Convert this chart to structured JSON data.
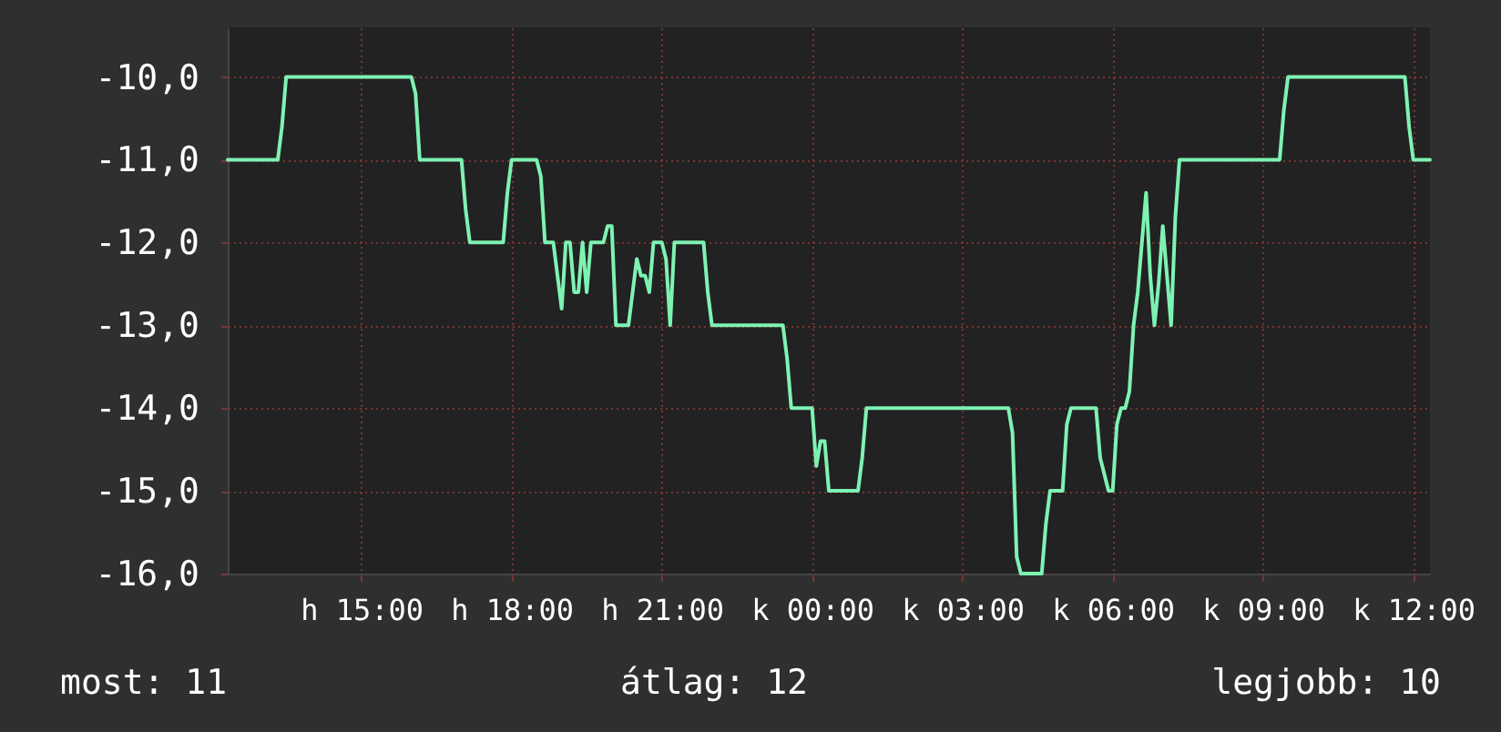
{
  "chart_data": {
    "type": "line",
    "categories": [
      null,
      null,
      null,
      null,
      null,
      null,
      null,
      null,
      null,
      null,
      null,
      null,
      null,
      null,
      null,
      null,
      null,
      null,
      null,
      null,
      null,
      null,
      null,
      null,
      null,
      null,
      null,
      null,
      null,
      null,
      null,
      null,
      "h 15:00",
      null,
      null,
      null,
      null,
      null,
      null,
      null,
      null,
      null,
      null,
      null,
      null,
      null,
      null,
      null,
      null,
      null,
      null,
      null,
      null,
      null,
      null,
      null,
      null,
      null,
      null,
      null,
      null,
      null,
      null,
      null,
      null,
      null,
      null,
      null,
      "h 18:00",
      null,
      null,
      null,
      null,
      null,
      null,
      null,
      null,
      null,
      null,
      null,
      null,
      null,
      null,
      null,
      null,
      null,
      null,
      null,
      null,
      null,
      null,
      null,
      null,
      null,
      null,
      null,
      null,
      null,
      null,
      null,
      null,
      null,
      null,
      null,
      "h 21:00",
      null,
      null,
      null,
      null,
      null,
      null,
      null,
      null,
      null,
      null,
      null,
      null,
      null,
      null,
      null,
      null,
      null,
      null,
      null,
      null,
      null,
      null,
      null,
      null,
      null,
      null,
      null,
      null,
      null,
      null,
      null,
      null,
      null,
      null,
      null,
      "k 00:00",
      null,
      null,
      null,
      null,
      null,
      null,
      null,
      null,
      null,
      null,
      null,
      null,
      null,
      null,
      null,
      null,
      null,
      null,
      null,
      null,
      null,
      null,
      null,
      null,
      null,
      null,
      null,
      null,
      null,
      null,
      null,
      null,
      null,
      null,
      null,
      "k 03:00",
      null,
      null,
      null,
      null,
      null,
      null,
      null,
      null,
      null,
      null,
      null,
      null,
      null,
      null,
      null,
      null,
      null,
      null,
      null,
      null,
      null,
      null,
      null,
      null,
      null,
      null,
      null,
      null,
      null,
      null,
      null,
      null,
      null,
      null,
      null,
      "k 06:00",
      null,
      null,
      null,
      null,
      null,
      null,
      null,
      null,
      null,
      null,
      null,
      null,
      null,
      null,
      null,
      null,
      null,
      null,
      null,
      null,
      null,
      null,
      null,
      null,
      null,
      null,
      null,
      null,
      null,
      null,
      null,
      null,
      null,
      null,
      null,
      "k 09:00",
      null,
      null,
      null,
      null,
      null,
      null,
      null,
      null,
      null,
      null,
      null,
      null,
      null,
      null,
      null,
      null,
      null,
      null,
      null,
      null,
      null,
      null,
      null,
      null,
      null,
      null,
      null,
      null,
      null,
      null,
      null,
      null,
      null,
      null,
      null,
      "k 12:00",
      null,
      null,
      null,
      null
    ],
    "series": [
      {
        "color": "#7ef2b3",
        "values": [
          -11,
          -11,
          -11,
          -11,
          -11,
          -11,
          -11,
          -11,
          -11,
          -11,
          -11,
          -11,
          -11,
          -10.6,
          -10,
          -10,
          -10,
          -10,
          -10,
          -10,
          -10,
          -10,
          -10,
          -10,
          -10,
          -10,
          -10,
          -10,
          -10,
          -10,
          -10,
          -10,
          -10,
          -10,
          -10,
          -10,
          -10,
          -10,
          -10,
          -10,
          -10,
          -10,
          -10,
          -10,
          -10,
          -10.2,
          -11,
          -11,
          -11,
          -11,
          -11,
          -11,
          -11,
          -11,
          -11,
          -11,
          -11,
          -11.6,
          -12,
          -12,
          -12,
          -12,
          -12,
          -12,
          -12,
          -12,
          -12,
          -11.4,
          -11,
          -11,
          -11,
          -11,
          -11,
          -11,
          -11,
          -11.2,
          -12,
          -12,
          -12,
          -12.4,
          -12.8,
          -12,
          -12,
          -12.6,
          -12.6,
          -12,
          -12.6,
          -12,
          -12,
          -12,
          -12,
          -11.8,
          -11.8,
          -13,
          -13,
          -13,
          -13,
          -12.6,
          -12.2,
          -12.4,
          -12.4,
          -12.6,
          -12,
          -12,
          -12,
          -12.2,
          -13,
          -12,
          -12,
          -12,
          -12,
          -12,
          -12,
          -12,
          -12,
          -12.6,
          -13,
          -13,
          -13,
          -13,
          -13,
          -13,
          -13,
          -13,
          -13,
          -13,
          -13,
          -13,
          -13,
          -13,
          -13,
          -13,
          -13,
          -13,
          -13.4,
          -14,
          -14,
          -14,
          -14,
          -14,
          -14,
          -14.7,
          -14.4,
          -14.4,
          -15,
          -15,
          -15,
          -15,
          -15,
          -15,
          -15,
          -15,
          -14.6,
          -14,
          -14,
          -14,
          -14,
          -14,
          -14,
          -14,
          -14,
          -14,
          -14,
          -14,
          -14,
          -14,
          -14,
          -14,
          -14,
          -14,
          -14,
          -14,
          -14,
          -14,
          -14,
          -14,
          -14,
          -14,
          -14,
          -14,
          -14,
          -14,
          -14,
          -14,
          -14,
          -14,
          -14,
          -14,
          -14.3,
          -15.8,
          -16,
          -16,
          -16,
          -16,
          -16,
          -16,
          -15.4,
          -15,
          -15,
          -15,
          -15,
          -14.2,
          -14,
          -14,
          -14,
          -14,
          -14,
          -14,
          -14,
          -14.6,
          -14.8,
          -15,
          -15,
          -14.2,
          -14,
          -14,
          -13.8,
          -13,
          -12.6,
          -12,
          -11.4,
          -12.4,
          -13,
          -12.5,
          -11.8,
          -12.4,
          -13,
          -11.7,
          -11,
          -11,
          -11,
          -11,
          -11,
          -11,
          -11,
          -11,
          -11,
          -11,
          -11,
          -11,
          -11,
          -11,
          -11,
          -11,
          -11,
          -11,
          -11,
          -11,
          -11,
          -11,
          -11,
          -11,
          -11,
          -10.4,
          -10,
          -10,
          -10,
          -10,
          -10,
          -10,
          -10,
          -10,
          -10,
          -10,
          -10,
          -10,
          -10,
          -10,
          -10,
          -10,
          -10,
          -10,
          -10,
          -10,
          -10,
          -10,
          -10,
          -10,
          -10,
          -10,
          -10,
          -10,
          -10,
          -10.6,
          -11,
          -11,
          -11,
          -11,
          -11
        ]
      }
    ],
    "ylim": [
      -16,
      -9.4
    ],
    "yticks": [
      {
        "value": -16,
        "label": "-16,0"
      },
      {
        "value": -15,
        "label": "-15,0"
      },
      {
        "value": -14,
        "label": "-14,0"
      },
      {
        "value": -13,
        "label": "-13,0"
      },
      {
        "value": -12,
        "label": "-12,0"
      },
      {
        "value": -11,
        "label": "-11,0"
      },
      {
        "value": -10,
        "label": "-10,0"
      }
    ],
    "grid": true,
    "annotations": [
      "most: 11",
      "átlag: 12",
      "legjobb: 10"
    ]
  }
}
